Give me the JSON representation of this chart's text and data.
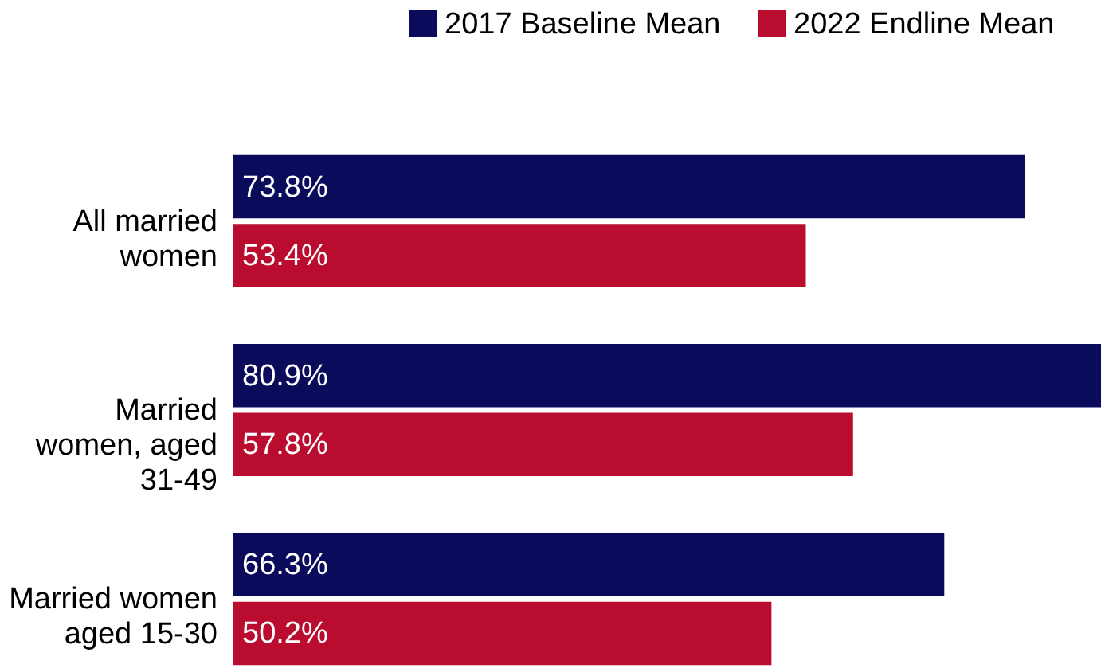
{
  "chart_data": {
    "type": "bar",
    "orientation": "horizontal",
    "legend": "top right",
    "categories": [
      "All married women",
      "Married women, aged 31-49",
      "Married women aged 15-30"
    ],
    "series": [
      {
        "name": "2017 Baseline Mean",
        "color": "#0b0b5c",
        "values": [
          73.8,
          80.9,
          66.3
        ],
        "value_labels": [
          "73.8%",
          "80.9%",
          "66.3%"
        ]
      },
      {
        "name": "2022 Endline Mean",
        "color": "#ba0c2f",
        "values": [
          53.4,
          57.8,
          50.2
        ],
        "value_labels": [
          "53.4%",
          "57.8%",
          "50.2%"
        ]
      }
    ]
  }
}
